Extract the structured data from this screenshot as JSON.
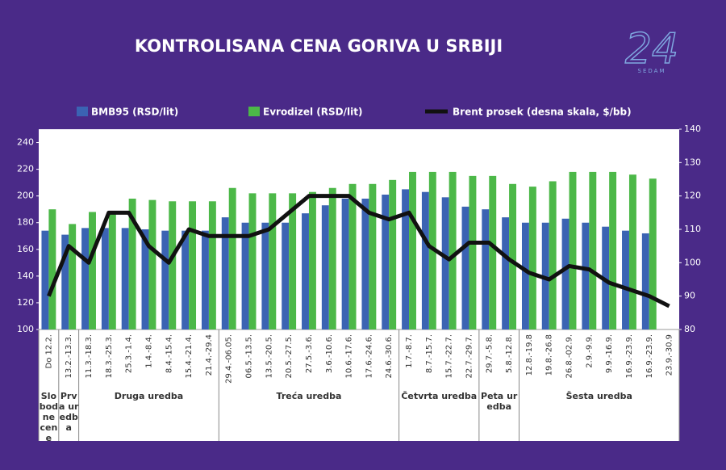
{
  "chart_data": {
    "type": "bar",
    "title": "KONTROLISANA CENA GORIVA U SRBIJI",
    "logo": {
      "number": "24",
      "text": "SEDAM"
    },
    "groups": [
      {
        "label": "Slobodne cene",
        "categories": [
          "Do 12.2."
        ]
      },
      {
        "label": "Prva uredba",
        "categories": [
          "13.2.-13.3."
        ]
      },
      {
        "label": "Druga uredba",
        "categories": [
          "11.3.-18.3.",
          "18.3.-25.3.",
          "25.3.-1.4.",
          "1.4.-8.4.",
          "8.4.-15.4.",
          "15.4.-21.4.",
          "21.4.-29.4"
        ]
      },
      {
        "label": "Treća uredba",
        "categories": [
          "29.4.-06.05.",
          "06.5.-13.5.",
          "13.5.-20.5.",
          "20.5.-27.5.",
          "27.5.-3.6.",
          "3.6.-10.6.",
          "10.6.-17.6.",
          "17.6.-24.6.",
          "24.6.-30.6."
        ]
      },
      {
        "label": "Četvrta uredba",
        "categories": [
          "1.7.-8.7.",
          "8.7.-15.7.",
          "15.7.-22.7.",
          "22.7.-29.7."
        ]
      },
      {
        "label": "Peta uredba",
        "categories": [
          "29.7.-5.8.",
          "5.8.-12.8."
        ]
      },
      {
        "label": "Šesta uredba",
        "categories": [
          "12.8.-19.8",
          "19.8.-26.8",
          "26.8.-02.9.",
          "2.9.-9.9.",
          "9.9.-16.9.",
          "16.9.-23.9.",
          "16.9.-23.9.",
          "23.9.-30.9"
        ]
      }
    ],
    "series": [
      {
        "name": "BMB95 (RSD/lit)",
        "color": "#3b63b3",
        "values": [
          174,
          171,
          176,
          176,
          176,
          175,
          174,
          174,
          174,
          184,
          180,
          180,
          180,
          187,
          193,
          198,
          198,
          201,
          205,
          203,
          199,
          192,
          190,
          184,
          180,
          180,
          183,
          180,
          177,
          174,
          172,
          null
        ]
      },
      {
        "name": "Evrodizel (RSD/lit)",
        "color": "#4cb848",
        "values": [
          190,
          179,
          188,
          188,
          198,
          197,
          196,
          196,
          196,
          206,
          202,
          202,
          202,
          203,
          206,
          209,
          209,
          212,
          218,
          218,
          218,
          215,
          215,
          209,
          207,
          211,
          218,
          218,
          218,
          216,
          213,
          null
        ]
      },
      {
        "name": "Brent prosek  (desna skala, $/bb)",
        "color": "#111111",
        "type": "line",
        "axis": "y2",
        "values": [
          90,
          105,
          100,
          115,
          115,
          105,
          100,
          110,
          108,
          108,
          108,
          110,
          115,
          120,
          120,
          120,
          115,
          113,
          115,
          105,
          101,
          106,
          106,
          101,
          97,
          95,
          99,
          98,
          94,
          92,
          90,
          87
        ]
      }
    ],
    "ylim": [
      100,
      250
    ],
    "yticks": [
      100,
      120,
      140,
      160,
      180,
      200,
      220,
      240
    ],
    "y2lim": [
      80,
      140
    ],
    "y2ticks": [
      80,
      90,
      100,
      110,
      120,
      130,
      140
    ],
    "grid": false
  }
}
